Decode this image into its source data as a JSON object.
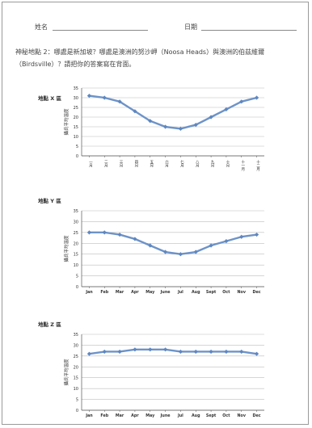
{
  "header": {
    "name_label": "姓名",
    "date_label": "日期"
  },
  "question": {
    "text": "神秘地點 2：哪處是新加坡？哪處是澳洲的努沙岬（Noosa Heads）與澳洲的伯茲維爾（Birdsville）？請把你的答案寫在背面。"
  },
  "colors": {
    "series_line": "#6d93c8",
    "series_marker": "#5f87c0",
    "grid": "#bdbdbd",
    "axis": "#555555"
  },
  "chart_data": [
    {
      "type": "line",
      "title": "地點 X 區",
      "ylabel": "攝氏平均溫度",
      "ylim": [
        0,
        35
      ],
      "yticks": [
        0,
        5,
        10,
        15,
        20,
        25,
        30,
        35
      ],
      "categories": [
        "一月",
        "二月",
        "三月",
        "四月",
        "五月",
        "六月",
        "七月",
        "八月",
        "九月",
        "十月",
        "十一月",
        "十二月"
      ],
      "series": [
        {
          "values": [
            31,
            30,
            28,
            23,
            18,
            15,
            14,
            16,
            20,
            24,
            28,
            30
          ]
        }
      ],
      "grid": true,
      "vertical_tick_labels": true
    },
    {
      "type": "line",
      "title": "地點 Y 區",
      "ylabel": "攝氏平均溫度",
      "ylim": [
        0,
        35
      ],
      "yticks": [
        0,
        5,
        10,
        15,
        20,
        25,
        30,
        35
      ],
      "categories": [
        "Jan",
        "Feb",
        "Mar",
        "Apr",
        "May",
        "June",
        "Jul",
        "Aug",
        "Sept",
        "Oct",
        "Nov",
        "Dec"
      ],
      "series": [
        {
          "values": [
            25,
            25,
            24,
            22,
            19,
            16,
            15,
            16,
            19,
            21,
            23,
            24
          ]
        }
      ],
      "grid": true,
      "vertical_tick_labels": false
    },
    {
      "type": "line",
      "title": "地點 Z 區",
      "ylabel": "攝氏平均溫度",
      "ylim": [
        0,
        35
      ],
      "yticks": [
        0,
        5,
        10,
        15,
        20,
        25,
        30,
        35
      ],
      "categories": [
        "Jan",
        "Feb",
        "Mar",
        "Apr",
        "May",
        "June",
        "Jul",
        "Aug",
        "Sept",
        "Oct",
        "Nov",
        "Dec"
      ],
      "series": [
        {
          "values": [
            26,
            27,
            27,
            28,
            28,
            28,
            27,
            27,
            27,
            27,
            27,
            26
          ]
        }
      ],
      "grid": true,
      "vertical_tick_labels": false
    }
  ]
}
